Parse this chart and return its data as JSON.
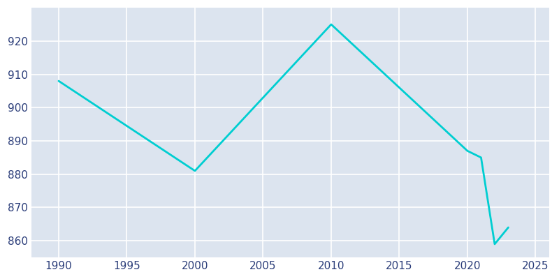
{
  "years": [
    1990,
    2000,
    2010,
    2020,
    2021,
    2022,
    2023
  ],
  "population": [
    908,
    881,
    925,
    887,
    885,
    859,
    864
  ],
  "line_color": "#00CED1",
  "axes_background_color": "#DCE4EF",
  "figure_background_color": "#FFFFFF",
  "grid_color": "#FFFFFF",
  "text_color": "#2C3E7A",
  "xlim": [
    1988,
    2026
  ],
  "ylim": [
    855,
    930
  ],
  "yticks": [
    860,
    870,
    880,
    890,
    900,
    910,
    920
  ],
  "xticks": [
    1990,
    1995,
    2000,
    2005,
    2010,
    2015,
    2020,
    2025
  ],
  "line_width": 2.0,
  "figsize": [
    8.0,
    4.0
  ],
  "dpi": 100
}
